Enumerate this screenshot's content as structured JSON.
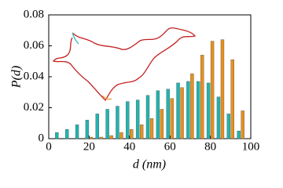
{
  "chart_data": {
    "type": "bar",
    "x_label": "d (nm)",
    "y_label": "P(d)",
    "x": [
      5,
      10,
      15,
      20,
      25,
      30,
      35,
      40,
      45,
      50,
      55,
      60,
      65,
      70,
      75,
      80,
      85,
      90,
      95
    ],
    "series": [
      {
        "color": "#1fb5b0",
        "values": [
          0.004,
          0.006,
          0.009,
          0.012,
          0.016,
          0.019,
          0.021,
          0.024,
          0.025,
          0.028,
          0.031,
          0.032,
          0.036,
          0.037,
          0.037,
          0.036,
          0.027,
          0.016,
          0.005
        ]
      },
      {
        "color": "#e8901a",
        "values": [
          0,
          0,
          0,
          0.001,
          0.001,
          0.002,
          0.004,
          0.006,
          0.009,
          0.013,
          0.019,
          0.026,
          0.033,
          0.042,
          0.054,
          0.063,
          0.064,
          0.051,
          0.018
        ]
      }
    ],
    "xlim": [
      0,
      100
    ],
    "xticks": [
      0,
      20,
      40,
      60,
      80,
      100
    ],
    "ylim": [
      0,
      0.08
    ],
    "yticks": [
      0,
      0.02,
      0.04,
      0.06,
      0.08
    ]
  }
}
